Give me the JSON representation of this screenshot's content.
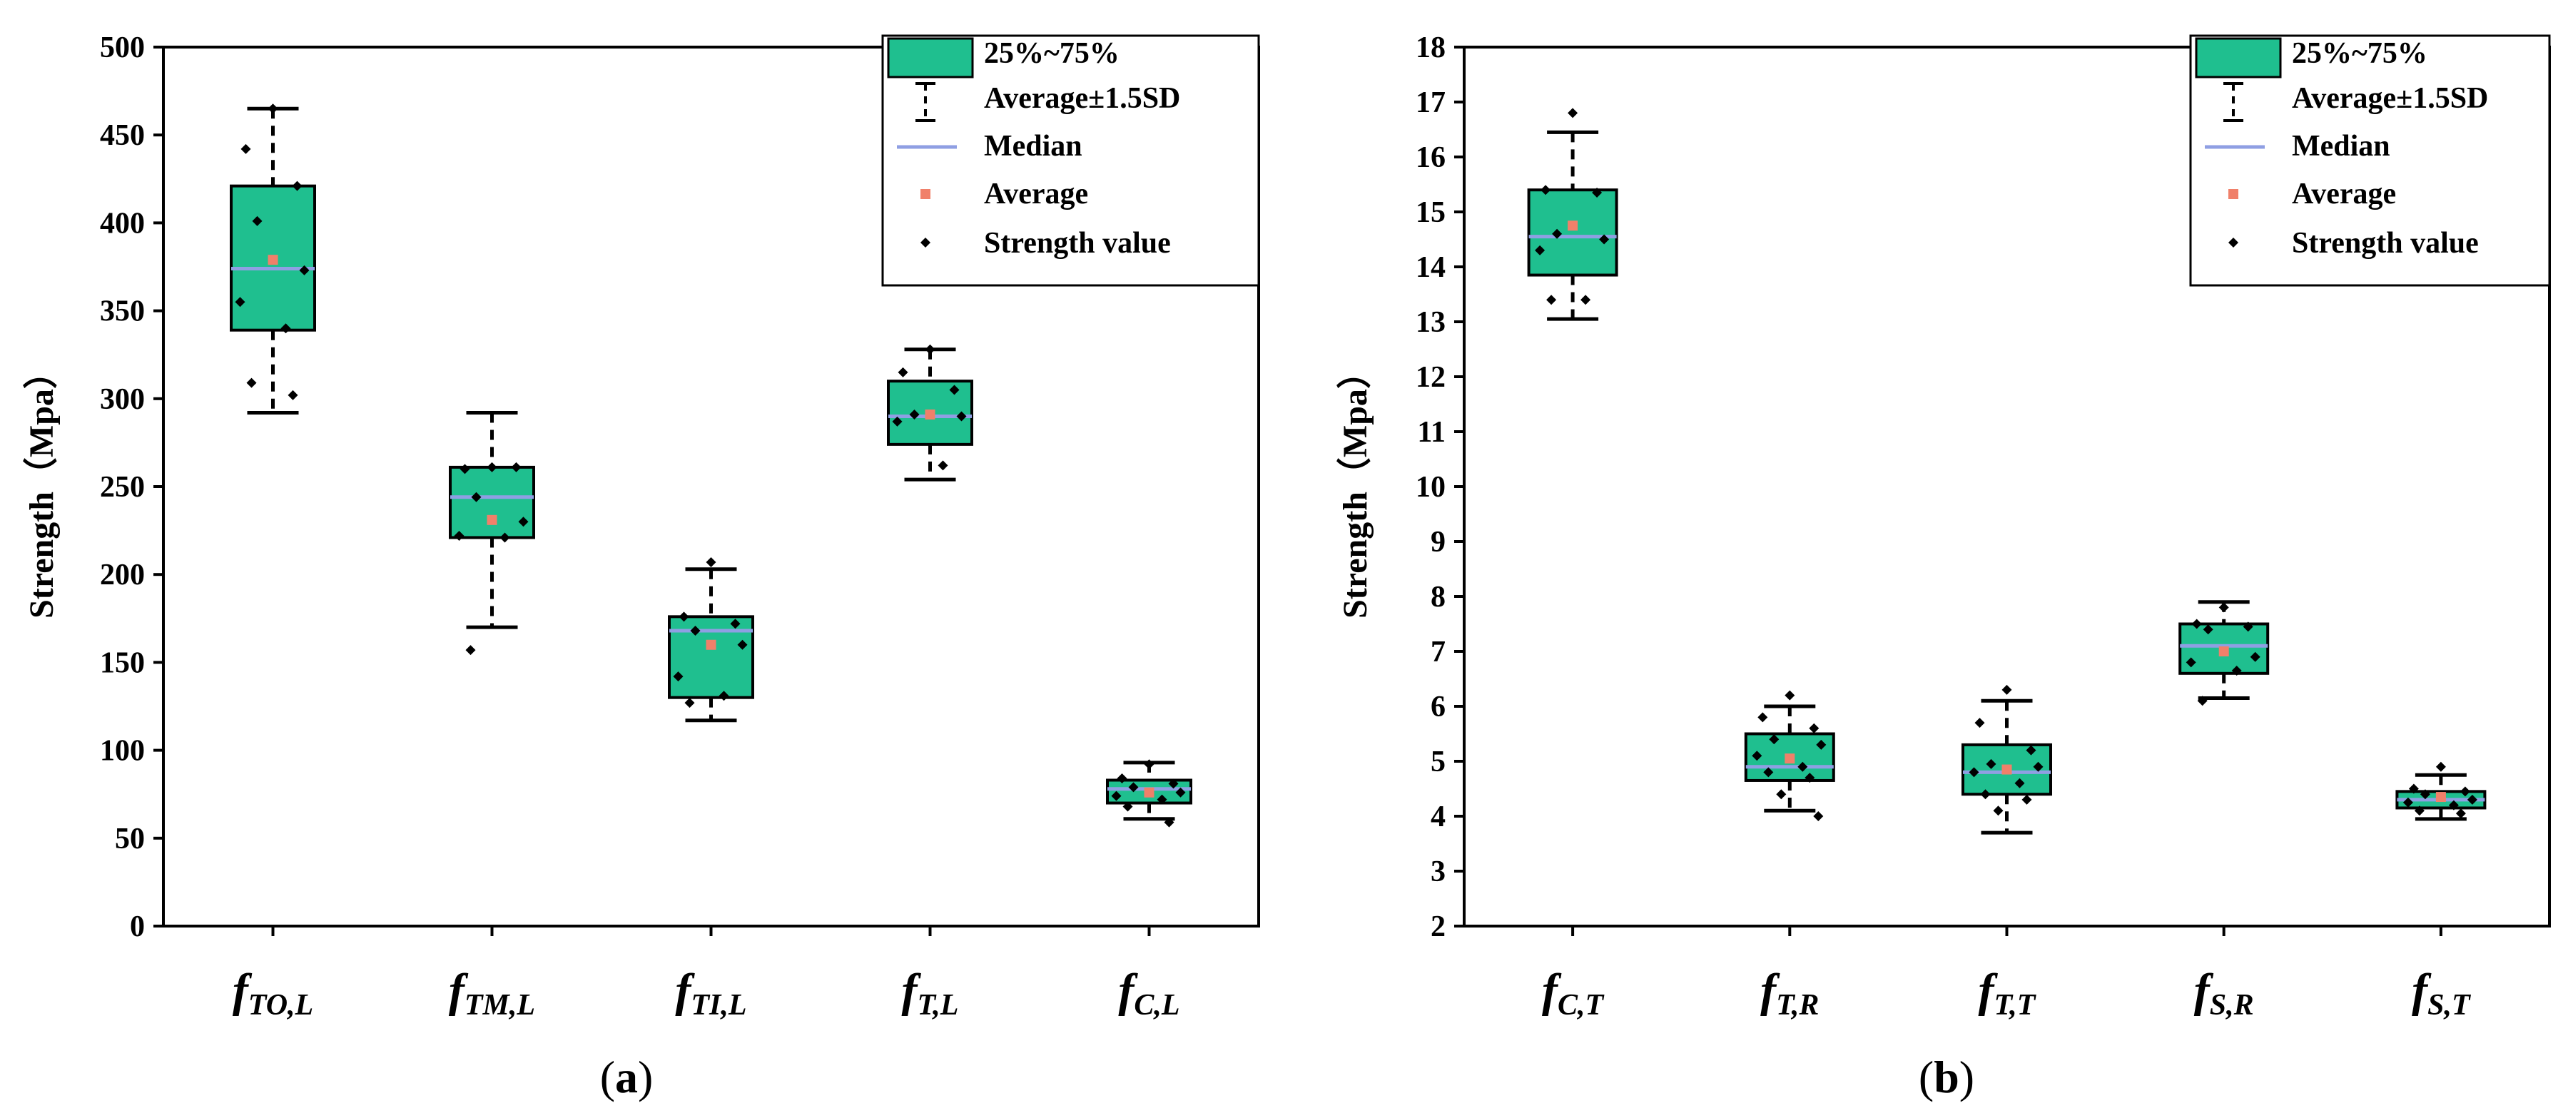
{
  "colors": {
    "box": "#1fbf8f",
    "median": "#8f9fe3",
    "average": "#f0806a",
    "point": "#000000"
  },
  "chart_data": [
    {
      "type": "box",
      "panel_label": "a",
      "ylabel": "Strength（Mpa）",
      "ylim": [
        0,
        500
      ],
      "yticks": [
        "0",
        "50",
        "100",
        "150",
        "200",
        "250",
        "300",
        "350",
        "400",
        "450",
        "500"
      ],
      "legend": [
        "25%~75%",
        "Average±1.5SD",
        "Median",
        "Average",
        "Strength value"
      ],
      "legend_position": "top-right",
      "categories": [
        {
          "main": "f",
          "sub": "TO,L",
          "q1": 339,
          "q3": 421,
          "median": 374,
          "average": 379,
          "whisker_low": 292,
          "whisker_high": 465,
          "points": [
            465,
            442,
            421,
            401,
            373,
            355,
            340,
            309,
            302
          ]
        },
        {
          "main": "f",
          "sub": "TM,L",
          "q1": 221,
          "q3": 261,
          "median": 244,
          "average": 231,
          "whisker_low": 170,
          "whisker_high": 292,
          "points": [
            261,
            260,
            261,
            244,
            230,
            222,
            221,
            157
          ]
        },
        {
          "main": "f",
          "sub": "TI,L",
          "q1": 130,
          "q3": 176,
          "median": 168,
          "average": 160,
          "whisker_low": 117,
          "whisker_high": 203,
          "points": [
            207,
            176,
            172,
            168,
            160,
            142,
            131,
            127
          ]
        },
        {
          "main": "f",
          "sub": "T,L",
          "q1": 274,
          "q3": 310,
          "median": 290,
          "average": 291,
          "whisker_low": 254,
          "whisker_high": 328,
          "points": [
            328,
            315,
            305,
            291,
            290,
            287,
            262
          ]
        },
        {
          "main": "f",
          "sub": "C,L",
          "q1": 70,
          "q3": 83,
          "median": 78,
          "average": 76,
          "whisker_low": 61,
          "whisker_high": 93,
          "points": [
            92,
            84,
            81,
            79,
            76,
            74,
            72,
            68,
            59
          ]
        }
      ]
    },
    {
      "type": "box",
      "panel_label": "b",
      "ylabel": "Strength（Mpa）",
      "ylim": [
        2,
        18
      ],
      "yticks": [
        "2",
        "3",
        "4",
        "5",
        "6",
        "7",
        "8",
        "9",
        "10",
        "11",
        "12",
        "13",
        "14",
        "15",
        "16",
        "17",
        "18"
      ],
      "legend": [
        "25%~75%",
        "Average±1.5SD",
        "Median",
        "Average",
        "Strength value"
      ],
      "legend_position": "top-right",
      "categories": [
        {
          "main": "f",
          "sub": "C,T",
          "q1": 13.85,
          "q3": 15.4,
          "median": 14.55,
          "average": 14.75,
          "whisker_low": 13.05,
          "whisker_high": 16.45,
          "points": [
            16.8,
            15.4,
            15.35,
            14.6,
            14.5,
            14.3,
            13.4,
            13.4
          ]
        },
        {
          "main": "f",
          "sub": "T,R",
          "q1": 4.65,
          "q3": 5.5,
          "median": 4.9,
          "average": 5.05,
          "whisker_low": 4.1,
          "whisker_high": 6.0,
          "points": [
            6.2,
            5.8,
            5.6,
            5.4,
            5.3,
            5.1,
            4.9,
            4.8,
            4.7,
            4.4,
            4.0
          ]
        },
        {
          "main": "f",
          "sub": "T,T",
          "q1": 4.4,
          "q3": 5.3,
          "median": 4.8,
          "average": 4.85,
          "whisker_low": 3.7,
          "whisker_high": 6.1,
          "points": [
            6.3,
            5.7,
            5.2,
            4.95,
            4.9,
            4.8,
            4.6,
            4.4,
            4.3,
            4.1
          ]
        },
        {
          "main": "f",
          "sub": "S,R",
          "q1": 6.6,
          "q3": 7.5,
          "median": 7.1,
          "average": 7.0,
          "whisker_low": 6.15,
          "whisker_high": 7.9,
          "points": [
            7.8,
            7.5,
            7.45,
            7.4,
            6.9,
            6.8,
            6.65,
            6.1
          ]
        },
        {
          "main": "f",
          "sub": "S,T",
          "q1": 4.15,
          "q3": 4.45,
          "median": 4.3,
          "average": 4.35,
          "whisker_low": 3.95,
          "whisker_high": 4.75,
          "points": [
            4.9,
            4.5,
            4.45,
            4.4,
            4.3,
            4.25,
            4.2,
            4.1,
            4.05
          ]
        }
      ]
    }
  ]
}
